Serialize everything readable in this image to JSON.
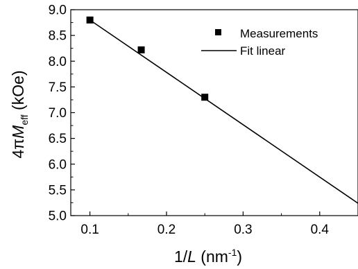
{
  "chart_data": {
    "type": "scatter",
    "title": "",
    "xlabel": {
      "prefix": "1/",
      "variable": "L",
      "unit_open": " (nm",
      "unit_exp": "-1",
      "unit_close": ")"
    },
    "ylabel": {
      "prefix": "4π",
      "variable": "M",
      "subscript": "eff",
      "unit": " (kOe)"
    },
    "xlim": [
      0.075,
      0.45
    ],
    "ylim": [
      5.0,
      9.0
    ],
    "xticks": [
      "0.1",
      "0.2",
      "0.3",
      "0.4"
    ],
    "yticks": [
      "5.0",
      "5.5",
      "6.0",
      "6.5",
      "7.0",
      "7.5",
      "8.0",
      "8.5",
      "9.0"
    ],
    "legend_position": "top-right",
    "series": [
      {
        "name": "Measurements",
        "kind": "scatter",
        "marker": "square",
        "color": "#000000",
        "x": [
          0.1,
          0.167,
          0.25
        ],
        "y": [
          8.8,
          8.22,
          7.3
        ]
      },
      {
        "name": "Fit linear",
        "kind": "line",
        "color": "#000000",
        "x": [
          0.1,
          0.45
        ],
        "y": [
          8.8,
          5.24
        ]
      }
    ]
  }
}
